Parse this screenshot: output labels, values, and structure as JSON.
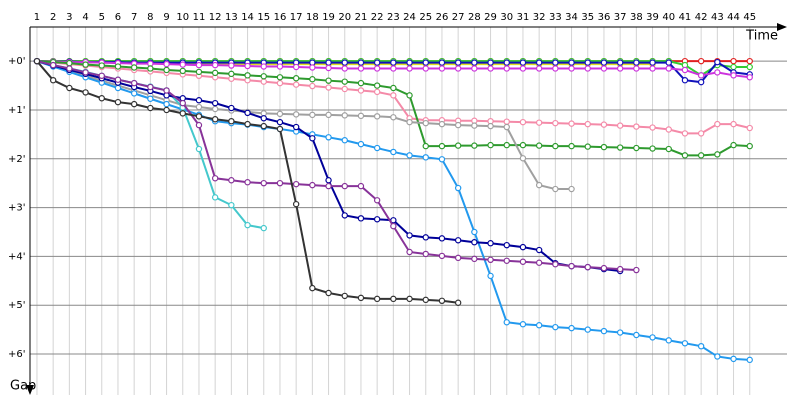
{
  "chart_data": {
    "type": "line",
    "x_label": "Time",
    "y_label": "Gap",
    "x": [
      1,
      2,
      3,
      4,
      5,
      6,
      7,
      8,
      9,
      10,
      11,
      12,
      13,
      14,
      15,
      16,
      17,
      18,
      19,
      20,
      21,
      22,
      23,
      24,
      25,
      26,
      27,
      28,
      29,
      30,
      31,
      32,
      33,
      34,
      35,
      36,
      37,
      38,
      39,
      40,
      41,
      42,
      43,
      44,
      45
    ],
    "xlim": [
      0.57,
      47.3
    ],
    "ylim": [
      -0.7,
      6.84
    ],
    "y_reversed": true,
    "grid": true,
    "yticks": [
      {
        "value": 0,
        "label": "+0'"
      },
      {
        "value": 1,
        "label": "+1'"
      },
      {
        "value": 2,
        "label": "+2'"
      },
      {
        "value": 3,
        "label": "+3'"
      },
      {
        "value": 4,
        "label": "+4'"
      },
      {
        "value": 5,
        "label": "+5'"
      },
      {
        "value": 6,
        "label": "+6'"
      }
    ],
    "series": [
      {
        "color": "#e02020",
        "values": [
          0,
          0,
          0,
          0,
          0,
          0,
          0,
          0,
          0,
          0,
          0,
          0,
          0,
          0,
          0,
          0,
          0,
          0,
          0,
          0,
          0,
          0,
          0,
          0,
          0,
          0,
          0,
          0,
          0,
          0,
          0,
          0,
          0,
          0,
          0,
          0,
          0,
          0,
          0,
          0,
          0,
          0,
          0,
          0,
          0
        ]
      },
      {
        "color": "#dddd22",
        "values": [
          0,
          0.01,
          0.02,
          0.02,
          0.03,
          0.03,
          0.04,
          0.04,
          0.05,
          0.05,
          0.05,
          0.05,
          0.06,
          0.06,
          0.06,
          0.06,
          0.06,
          0.06,
          0.06,
          0.06,
          0.06,
          0.06,
          0.06,
          0.06,
          0.06,
          0.06,
          0.06,
          0.06,
          0.06,
          0.06,
          0.06,
          0.06,
          0.06,
          0.06,
          0.06,
          0.06,
          0.06,
          0.06,
          0.06,
          null,
          null,
          null,
          null,
          null,
          null
        ]
      },
      {
        "color": "#33cc33",
        "values": [
          0,
          0,
          0,
          0,
          0,
          0,
          0,
          0,
          0,
          0,
          0,
          0,
          0,
          0,
          0,
          0,
          0,
          0,
          0,
          0,
          0,
          0,
          0,
          0,
          0,
          0,
          0,
          0,
          0,
          0,
          0,
          0,
          0,
          0,
          0,
          0,
          0,
          0,
          0,
          0,
          0.08,
          0.29,
          0.08,
          0.12,
          0.12
        ]
      },
      {
        "color": "#1010bb",
        "values": [
          0,
          0.01,
          0.01,
          0.02,
          0.02,
          0.02,
          0.03,
          0.03,
          0.03,
          0.03,
          0.03,
          0.03,
          0.03,
          0.03,
          0.03,
          0.03,
          0.03,
          0.03,
          0.03,
          0.03,
          0.03,
          0.03,
          0.03,
          0.03,
          0.03,
          0.03,
          0.03,
          0.03,
          0.03,
          0.03,
          0.03,
          0.03,
          0.03,
          0.03,
          0.03,
          0.03,
          0.03,
          0.03,
          0.03,
          0.03,
          0.39,
          0.43,
          0.02,
          0.23,
          0.27
        ]
      },
      {
        "color": "#cc33dd",
        "values": [
          0,
          0.01,
          0.02,
          0.02,
          0.03,
          0.04,
          0.05,
          0.05,
          0.06,
          0.07,
          0.08,
          0.08,
          0.09,
          0.1,
          0.11,
          0.11,
          0.12,
          0.13,
          0.14,
          0.15,
          0.15,
          0.15,
          0.15,
          0.15,
          0.15,
          0.15,
          0.15,
          0.15,
          0.15,
          0.15,
          0.15,
          0.15,
          0.15,
          0.15,
          0.15,
          0.15,
          0.15,
          0.15,
          0.15,
          0.15,
          0.18,
          0.29,
          0.23,
          0.29,
          0.33
        ]
      },
      {
        "color": "#f48aa8",
        "values": [
          0,
          0.03,
          0.06,
          0.09,
          0.12,
          0.15,
          0.18,
          0.21,
          0.24,
          0.27,
          0.3,
          0.33,
          0.36,
          0.39,
          0.42,
          0.45,
          0.48,
          0.51,
          0.54,
          0.57,
          0.6,
          0.63,
          0.7,
          1.17,
          1.21,
          1.21,
          1.22,
          1.22,
          1.23,
          1.24,
          1.25,
          1.26,
          1.27,
          1.28,
          1.29,
          1.3,
          1.32,
          1.34,
          1.36,
          1.4,
          1.48,
          1.48,
          1.29,
          1.29,
          1.37
        ]
      },
      {
        "color": "#2e9a2e",
        "values": [
          0,
          0.02,
          0.04,
          0.07,
          0.09,
          0.11,
          0.13,
          0.15,
          0.18,
          0.2,
          0.22,
          0.24,
          0.26,
          0.29,
          0.31,
          0.33,
          0.35,
          0.37,
          0.4,
          0.42,
          0.45,
          0.5,
          0.55,
          0.7,
          1.74,
          1.74,
          1.73,
          1.73,
          1.72,
          1.72,
          1.72,
          1.73,
          1.74,
          1.74,
          1.75,
          1.76,
          1.77,
          1.78,
          1.79,
          1.8,
          1.93,
          1.93,
          1.91,
          1.72,
          1.74
        ]
      },
      {
        "color": "#a0a0a0",
        "values": [
          0,
          0.1,
          0.2,
          0.3,
          0.4,
          0.5,
          0.6,
          0.7,
          0.8,
          0.9,
          0.94,
          0.98,
          1.01,
          1.04,
          1.07,
          1.08,
          1.09,
          1.1,
          1.1,
          1.11,
          1.12,
          1.13,
          1.15,
          1.25,
          1.27,
          1.29,
          1.31,
          1.32,
          1.33,
          1.35,
          1.99,
          2.54,
          2.62,
          2.62,
          null,
          null,
          null,
          null,
          null,
          null,
          null,
          null,
          null,
          null,
          null
        ]
      },
      {
        "color": "#2299ee",
        "values": [
          0,
          0.11,
          0.22,
          0.33,
          0.44,
          0.55,
          0.66,
          0.77,
          0.88,
          0.99,
          1.1,
          1.23,
          1.27,
          1.3,
          1.35,
          1.39,
          1.44,
          1.5,
          1.56,
          1.62,
          1.7,
          1.78,
          1.86,
          1.93,
          1.97,
          2.01,
          2.6,
          3.5,
          4.4,
          5.35,
          5.39,
          5.41,
          5.45,
          5.47,
          5.5,
          5.53,
          5.56,
          5.61,
          5.66,
          5.72,
          5.78,
          5.84,
          6.05,
          6.1,
          6.12
        ]
      },
      {
        "color": "#44c8cc",
        "values": [
          0,
          0.08,
          0.15,
          0.22,
          0.3,
          0.38,
          0.45,
          0.52,
          0.6,
          0.95,
          1.8,
          2.79,
          2.95,
          3.36,
          3.42,
          null,
          null,
          null,
          null,
          null,
          null,
          null,
          null,
          null,
          null,
          null,
          null,
          null,
          null,
          null,
          null,
          null,
          null,
          null,
          null,
          null,
          null,
          null,
          null,
          null,
          null,
          null,
          null,
          null,
          null
        ]
      },
      {
        "color": "#000099",
        "values": [
          0,
          0.09,
          0.18,
          0.26,
          0.35,
          0.44,
          0.53,
          0.61,
          0.7,
          0.76,
          0.8,
          0.86,
          0.96,
          1.06,
          1.17,
          1.25,
          1.35,
          1.58,
          2.44,
          3.16,
          3.22,
          3.24,
          3.26,
          3.57,
          3.61,
          3.63,
          3.67,
          3.71,
          3.73,
          3.77,
          3.81,
          3.87,
          4.14,
          4.2,
          4.22,
          4.26,
          4.3,
          null,
          null,
          null,
          null,
          null,
          null,
          null,
          null
        ]
      },
      {
        "color": "#883399",
        "values": [
          0,
          0.08,
          0.15,
          0.23,
          0.3,
          0.38,
          0.45,
          0.53,
          0.6,
          0.86,
          1.31,
          2.4,
          2.44,
          2.48,
          2.5,
          2.5,
          2.52,
          2.54,
          2.56,
          2.56,
          2.56,
          2.85,
          3.38,
          3.91,
          3.95,
          3.99,
          4.03,
          4.05,
          4.07,
          4.09,
          4.11,
          4.13,
          4.16,
          4.2,
          4.22,
          4.24,
          4.26,
          4.28,
          null,
          null,
          null,
          null,
          null,
          null,
          null
        ]
      },
      {
        "color": "#333333",
        "values": [
          0,
          0.39,
          0.55,
          0.64,
          0.76,
          0.84,
          0.88,
          0.96,
          1.0,
          1.07,
          1.13,
          1.19,
          1.23,
          1.29,
          1.33,
          1.39,
          2.93,
          4.65,
          4.75,
          4.81,
          4.85,
          4.87,
          4.87,
          4.87,
          4.89,
          4.91,
          4.95,
          null,
          null,
          null,
          null,
          null,
          null,
          null,
          null,
          null,
          null,
          null,
          null,
          null,
          null,
          null,
          null,
          null,
          null
        ]
      }
    ]
  }
}
